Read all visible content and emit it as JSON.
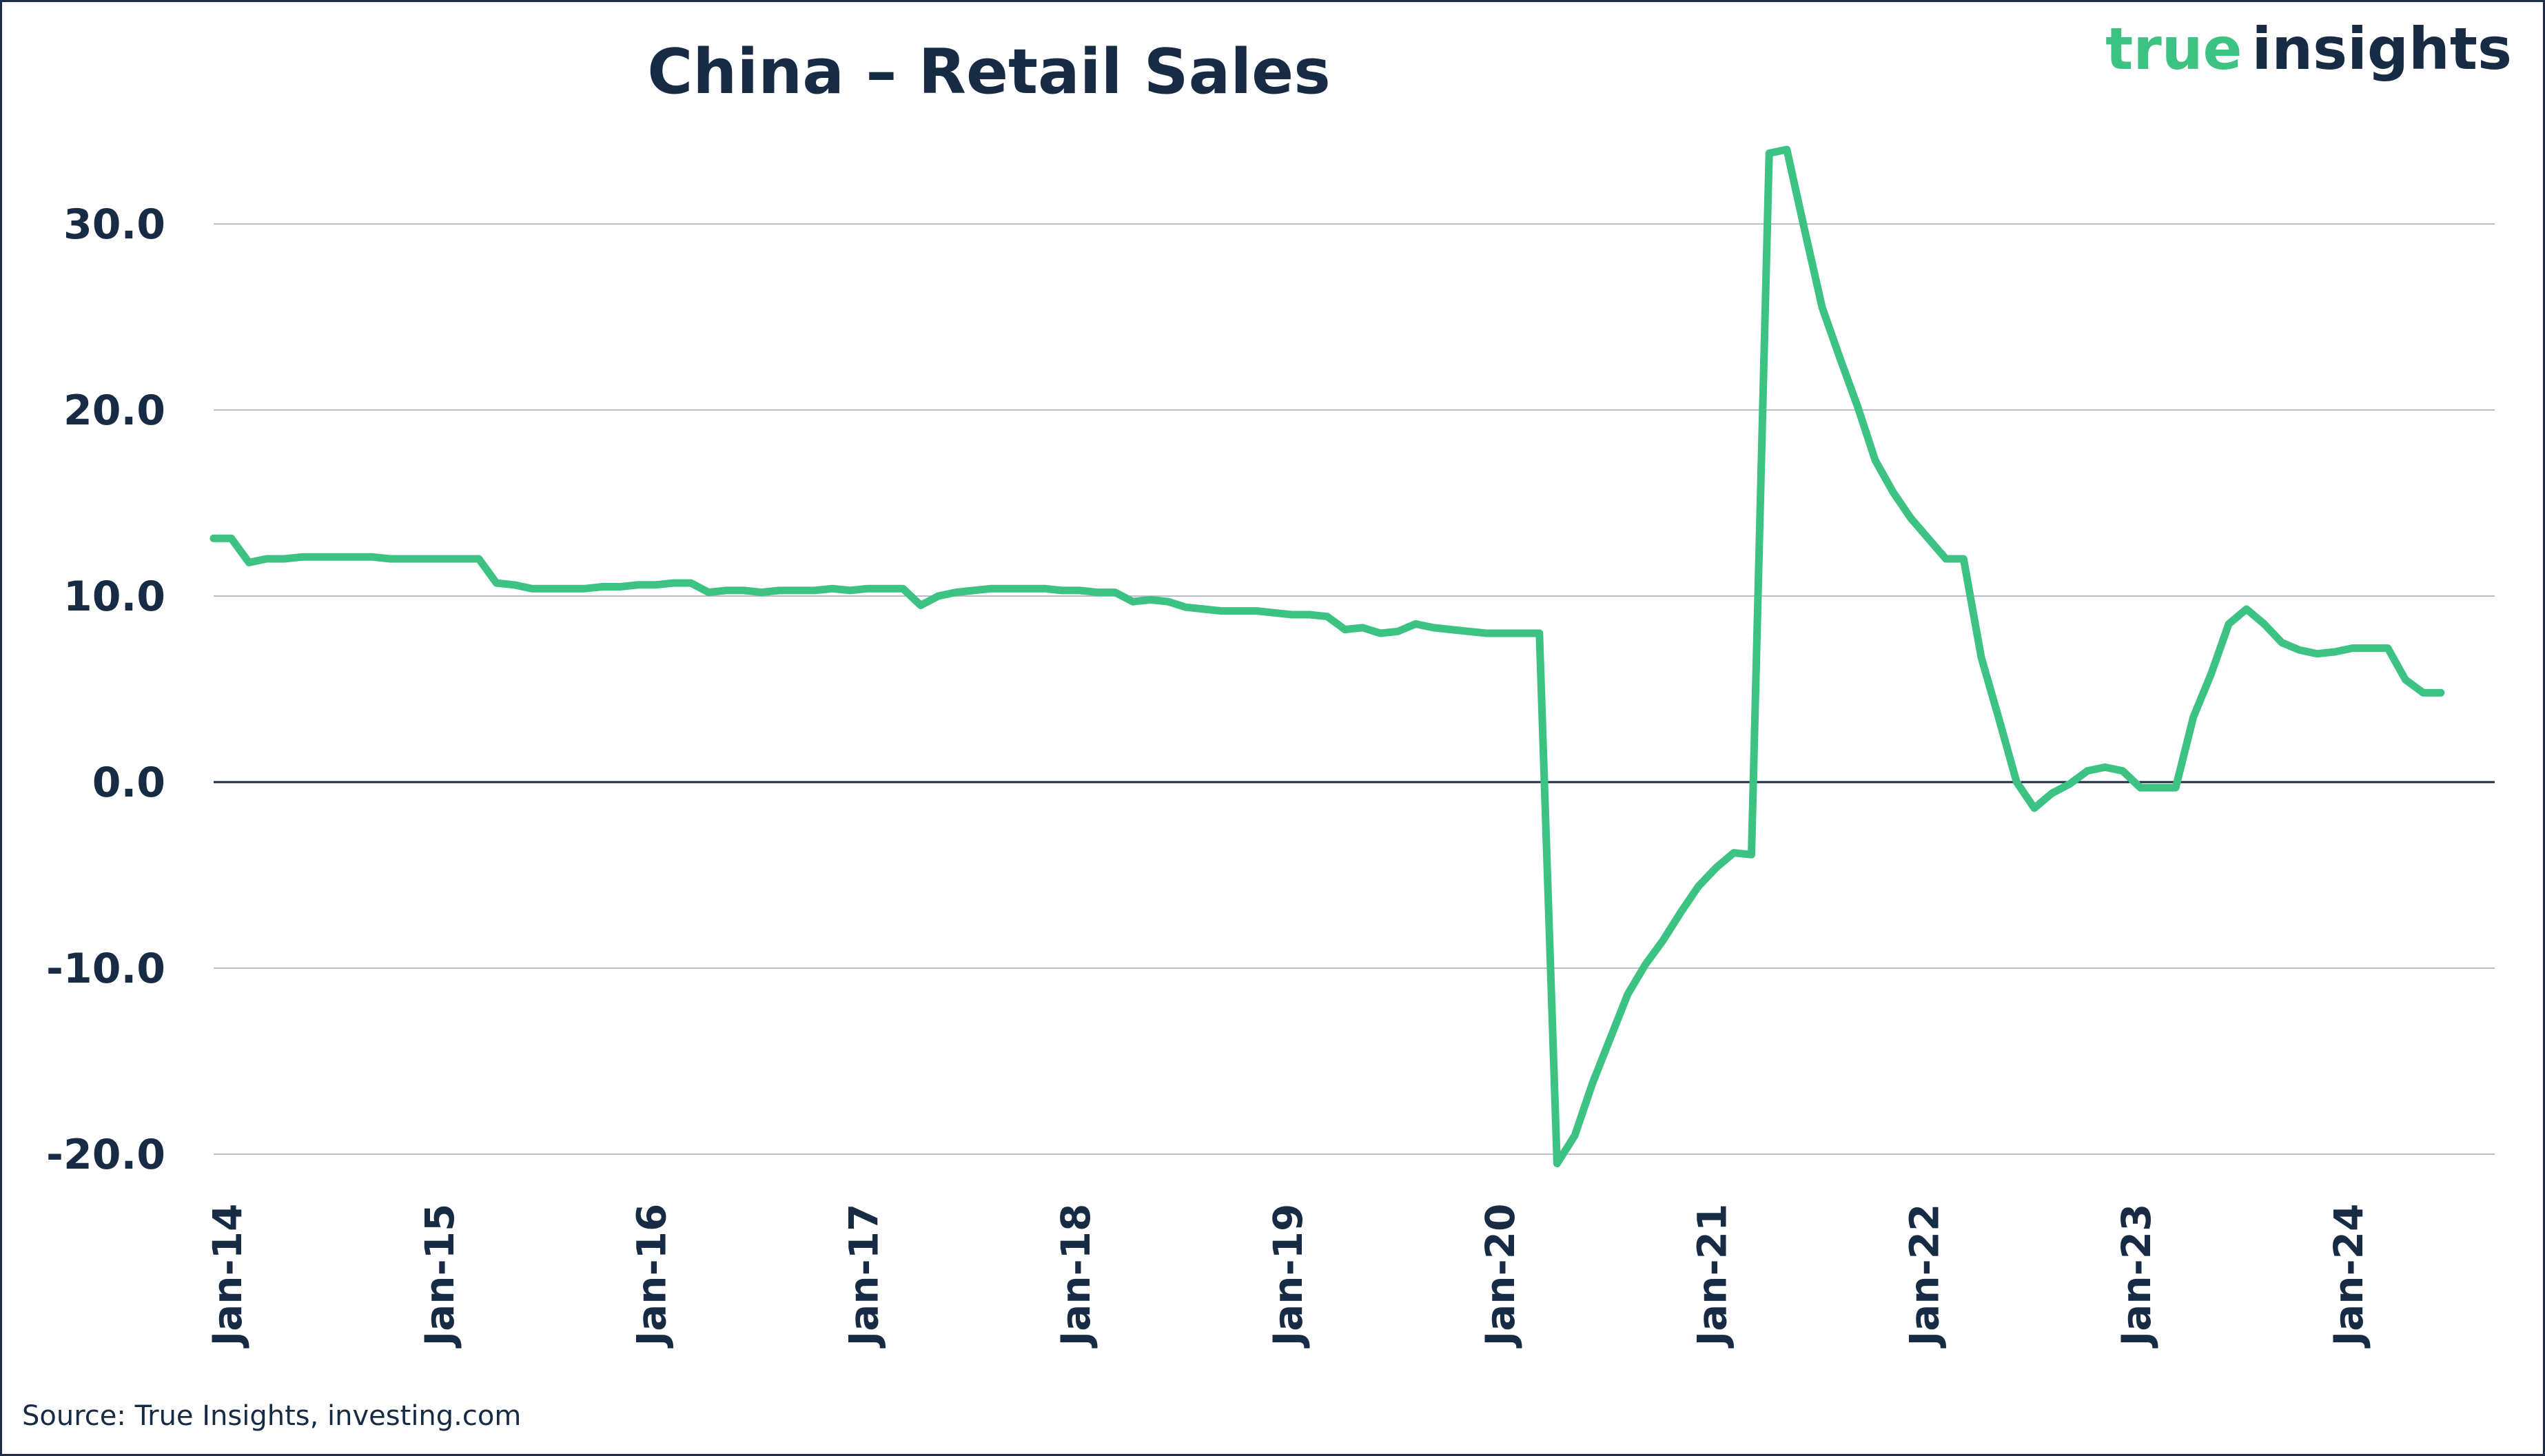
{
  "colors": {
    "line": "#3cc383",
    "text": "#172b44",
    "grid": "#b9bec6",
    "zero": "#172b44",
    "brand_green": "#3cc383",
    "brand_navy": "#172b44"
  },
  "logo": {
    "part1": "true",
    "part2": "insights"
  },
  "source": "Source: True Insights, investing.com",
  "chart_data": {
    "type": "line",
    "title": "China – Retail Sales",
    "xlabel": "",
    "ylabel": "",
    "ylim": [
      -20,
      35
    ],
    "yticks": [
      30,
      20,
      10,
      0,
      -10,
      -20
    ],
    "ytick_labels": [
      "30.0",
      "20.0",
      "10.0",
      "0.0",
      "-10.0",
      "-20.0"
    ],
    "grid": true,
    "x_tick_labels": [
      "Jan-14",
      "Jan-15",
      "Jan-16",
      "Jan-17",
      "Jan-18",
      "Jan-19",
      "Jan-20",
      "Jan-21",
      "Jan-22",
      "Jan-23",
      "Jan-24"
    ],
    "x_start": "Jan-14",
    "series": [
      {
        "values": [
          13.1,
          13.1,
          11.8,
          12.0,
          12.0,
          12.1,
          12.1,
          12.1,
          12.1,
          12.1,
          12.0,
          12.0,
          12.0,
          12.0,
          12.0,
          12.0,
          10.7,
          10.6,
          10.4,
          10.4,
          10.4,
          10.4,
          10.5,
          10.5,
          10.6,
          10.6,
          10.7,
          10.7,
          10.2,
          10.3,
          10.3,
          10.2,
          10.3,
          10.3,
          10.3,
          10.4,
          10.3,
          10.4,
          10.4,
          10.4,
          9.5,
          10.0,
          10.2,
          10.3,
          10.4,
          10.4,
          10.4,
          10.4,
          10.3,
          10.3,
          10.2,
          10.2,
          9.7,
          9.8,
          9.7,
          9.4,
          9.3,
          9.2,
          9.2,
          9.2,
          9.1,
          9.0,
          9.0,
          8.9,
          8.2,
          8.3,
          8.0,
          8.1,
          8.5,
          8.3,
          8.2,
          8.1,
          8.0,
          8.0,
          8.0,
          8.0,
          -20.5,
          -19.0,
          -16.2,
          -13.8,
          -11.4,
          -9.8,
          -8.5,
          -7.0,
          -5.6,
          -4.6,
          -3.8,
          -3.9,
          33.8,
          34.0,
          29.7,
          25.5,
          22.8,
          20.2,
          17.3,
          15.6,
          14.2,
          13.1,
          12.0,
          12.0,
          6.7,
          3.4,
          0.0,
          -1.4,
          -0.6,
          -0.1,
          0.6,
          0.8,
          0.6,
          -0.3,
          -0.3,
          -0.3,
          3.5,
          5.8,
          8.5,
          9.3,
          8.5,
          7.5,
          7.1,
          6.9,
          7.0,
          7.2,
          7.2,
          7.2,
          5.5,
          4.8,
          4.8
        ]
      }
    ]
  }
}
